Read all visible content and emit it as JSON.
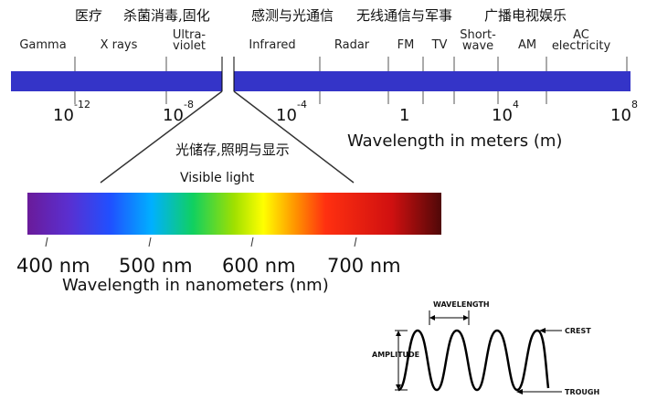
{
  "top_labels": [
    "医疗",
    "杀菌消毒,固化",
    "感测与光通信",
    "无线通信与军事",
    "广播电视娱乐"
  ],
  "bands": [
    [
      "Gamma"
    ],
    [
      "X rays"
    ],
    [
      "Ultra-",
      "violet"
    ],
    [
      "Infrared"
    ],
    [
      "Radar"
    ],
    [
      "FM"
    ],
    [
      "TV"
    ],
    [
      "Short-",
      "wave"
    ],
    [
      "AM"
    ],
    [
      "AC",
      "electricity"
    ]
  ],
  "scale": [
    {
      "base": "10",
      "exp": "-12"
    },
    {
      "base": "10",
      "exp": "-8"
    },
    {
      "base": "10",
      "exp": "-4"
    },
    {
      "base": "1"
    },
    {
      "base": "10",
      "exp": "4"
    },
    {
      "base": "10",
      "exp": "8"
    }
  ],
  "axis_label": "Wavelength in meters (m)",
  "visible_use": "光储存,照明与显示",
  "visible_title": "Visible light",
  "nm_labels": [
    "400 nm",
    "500 nm",
    "600 nm",
    "700 nm"
  ],
  "nm_axis_label": "Wavelength in nanometers (nm)",
  "wave": {
    "wavelength": "WAVELENGTH",
    "amplitude": "AMPLITUDE",
    "crest": "CREST",
    "trough": "TROUGH"
  }
}
